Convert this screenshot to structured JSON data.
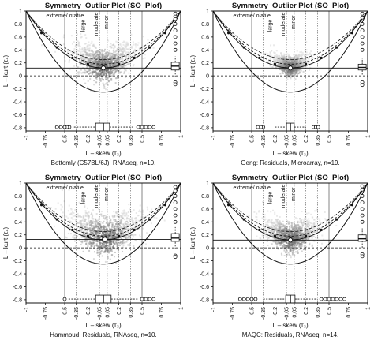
{
  "chart_data": [
    {
      "type": "scatter",
      "title": "Symmetry–Outlier Plot (SO–Plot)",
      "xlabel": "L – skew (τ₃)",
      "ylabel": "L – kurt (τ₄)",
      "subtitle": "Bottomly (C57BL/6J): RNAseq, n=10.",
      "xlim": [
        -1,
        1
      ],
      "ylim": [
        -0.85,
        1
      ],
      "x_ticks": [
        "-1",
        "-0.75",
        "-0.5",
        "-0.35",
        "-0.2",
        "-0.05",
        "0.05",
        "0.2",
        "0.35",
        "0.5",
        "0.75",
        "1"
      ],
      "y_ticks": [
        "1",
        "0.8",
        "0.6",
        "0.4",
        "0.2",
        "0",
        "-0.2",
        "-0.4",
        "-0.6",
        "-0.8"
      ],
      "region_labels": [
        "extreme/ otatile",
        "large",
        "moderate",
        "minor"
      ],
      "point_center": [
        0.0,
        0.12
      ],
      "hline": 0.12,
      "density_spread": 0.22,
      "skew_box": {
        "y": -0.79,
        "q1": -0.1,
        "median": 0.0,
        "q3": 0.08,
        "whisker_low": -0.38,
        "whisker_high": 0.4,
        "out_low": [
          -0.44,
          -0.47,
          -0.5,
          -0.55,
          -0.6
        ],
        "out_high": [
          0.45,
          0.5,
          0.55,
          0.6,
          0.65
        ]
      },
      "kurt_box": {
        "x": 0.93,
        "q1": 0.09,
        "median": 0.15,
        "q3": 0.21,
        "whisker_low": -0.02,
        "whisker_high": 0.3,
        "out_low": [
          -0.1,
          -0.13
        ],
        "out_high": [
          0.4,
          0.5,
          0.6,
          0.7,
          0.8,
          0.88,
          0.92,
          0.96
        ]
      }
    },
    {
      "type": "scatter",
      "title": "Symmetry–Outlier Plot (SO–Plot)",
      "xlabel": "L – skew (τ₃)",
      "ylabel": "L – kurt (τ₄)",
      "subtitle": "Geng: Residuals, Microarray, n=19.",
      "xlim": [
        -1,
        1
      ],
      "ylim": [
        -0.85,
        1
      ],
      "x_ticks": [
        "-1",
        "-0.75",
        "-0.5",
        "-0.35",
        "-0.2",
        "-0.05",
        "0.05",
        "0.2",
        "0.35",
        "0.5",
        "0.75",
        "1"
      ],
      "y_ticks": [
        "1",
        "0.8",
        "0.6",
        "0.4",
        "0.2",
        "0",
        "-0.2",
        "-0.4",
        "-0.6",
        "-0.8"
      ],
      "region_labels": [
        "extreme/ olatile",
        "large",
        "moderate",
        "minor"
      ],
      "point_center": [
        0.0,
        0.12
      ],
      "hline": 0.12,
      "density_spread": 0.12,
      "skew_box": {
        "y": -0.79,
        "q1": -0.05,
        "median": 0.0,
        "q3": 0.05,
        "whisker_low": -0.2,
        "whisker_high": 0.2,
        "out_low": [
          -0.35,
          -0.38,
          -0.42
        ],
        "out_high": [
          0.3,
          0.33,
          0.36
        ]
      },
      "kurt_box": {
        "x": 0.93,
        "q1": 0.09,
        "median": 0.13,
        "q3": 0.18,
        "whisker_low": 0.02,
        "whisker_high": 0.28,
        "out_low": [
          -0.1,
          -0.14
        ],
        "out_high": [
          0.4,
          0.5,
          0.6,
          0.7,
          0.8,
          0.9,
          0.96
        ]
      }
    },
    {
      "type": "scatter",
      "title": "Symmetry–Outlier Plot (SO–Plot)",
      "xlabel": "L – skew (τ₃)",
      "ylabel": "L – kurt (τ₄)",
      "subtitle": "Hammoud: Residuals, RNAseq, n=10.",
      "xlim": [
        -1,
        1
      ],
      "ylim": [
        -0.85,
        1
      ],
      "x_ticks": [
        "-1",
        "-0.75",
        "-0.5",
        "-0.35",
        "-0.2",
        "-0.05",
        "0.05",
        "0.2",
        "0.35",
        "0.5",
        "0.75",
        "1"
      ],
      "y_ticks": [
        "1",
        "0.8",
        "0.6",
        "0.4",
        "0.2",
        "0",
        "-0.2",
        "-0.4",
        "-0.6",
        "-0.8"
      ],
      "region_labels": [
        "extreme/ olatile",
        "large",
        "moderate",
        "minor"
      ],
      "point_center": [
        0.02,
        0.13
      ],
      "hline": 0.13,
      "density_spread": 0.26,
      "skew_box": {
        "y": -0.79,
        "q1": -0.1,
        "median": 0.0,
        "q3": 0.1,
        "whisker_low": -0.45,
        "whisker_high": 0.45,
        "out_low": [
          -0.5
        ],
        "out_high": [
          0.5,
          0.55,
          0.6,
          0.65
        ]
      },
      "kurt_box": {
        "x": 0.93,
        "q1": 0.1,
        "median": 0.15,
        "q3": 0.22,
        "whisker_low": -0.02,
        "whisker_high": 0.32,
        "out_low": [
          -0.12,
          -0.14
        ],
        "out_high": [
          0.4,
          0.5,
          0.6,
          0.7,
          0.8,
          0.88,
          0.94
        ]
      }
    },
    {
      "type": "scatter",
      "title": "Symmetry–Outlier Plot (SO–Plot)",
      "xlabel": "L – skew (τ₃)",
      "ylabel": "L – kurt (τ₄)",
      "subtitle": "MAQC: Residuals, RNAseq, n=14.",
      "xlim": [
        -1,
        1
      ],
      "ylim": [
        -0.85,
        1
      ],
      "x_ticks": [
        "-1",
        "-0.75",
        "-0.5",
        "-0.35",
        "-0.2",
        "-0.05",
        "0.05",
        "0.2",
        "0.35",
        "0.5",
        "0.75",
        "1"
      ],
      "y_ticks": [
        "1",
        "0.8",
        "0.6",
        "0.4",
        "0.2",
        "0",
        "-0.2",
        "-0.4",
        "-0.6",
        "-0.8"
      ],
      "region_labels": [
        "extreme/ olatile",
        "large",
        "moderate",
        "minor"
      ],
      "point_center": [
        0.0,
        0.12
      ],
      "hline": 0.12,
      "density_spread": 0.2,
      "skew_box": {
        "y": -0.79,
        "q1": -0.06,
        "median": 0.0,
        "q3": 0.06,
        "whisker_low": -0.35,
        "whisker_high": 0.35,
        "out_low": [
          -0.45,
          -0.5,
          -0.55,
          -0.6,
          -0.65
        ],
        "out_high": [
          0.4,
          0.45,
          0.5,
          0.55,
          0.6,
          0.65,
          0.7
        ]
      },
      "kurt_box": {
        "x": 0.93,
        "q1": 0.1,
        "median": 0.14,
        "q3": 0.2,
        "whisker_low": 0.0,
        "whisker_high": 0.3,
        "out_low": [
          -0.1,
          -0.13
        ],
        "out_high": [
          0.4,
          0.5,
          0.6,
          0.7,
          0.8,
          0.9,
          0.95
        ]
      }
    }
  ]
}
